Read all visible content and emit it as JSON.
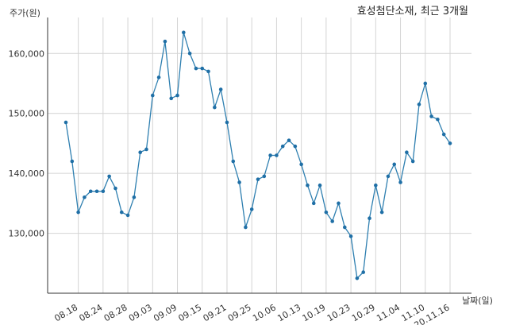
{
  "chart_data": {
    "type": "line",
    "title": "효성첨단소재, 최근 3개월",
    "ylabel": "주가(원)",
    "xlabel": "날짜(일)",
    "ylim": [
      120000,
      166000
    ],
    "yticks": [
      130000,
      140000,
      150000,
      160000
    ],
    "ytick_labels": [
      "130,000",
      "140,000",
      "150,000",
      "160,000"
    ],
    "grid": true,
    "colors": {
      "line": "#2e7fb0",
      "marker": "#1f6fa6"
    },
    "x": [
      "08.14",
      "08.17",
      "08.18",
      "08.19",
      "08.20",
      "08.21",
      "08.24",
      "08.25",
      "08.26",
      "08.27",
      "08.28",
      "08.31",
      "09.01",
      "09.02",
      "09.03",
      "09.04",
      "09.07",
      "09.08",
      "09.09",
      "09.10",
      "09.11",
      "09.14",
      "09.15",
      "09.16",
      "09.17",
      "09.18",
      "09.21",
      "09.22",
      "09.23",
      "09.24",
      "09.25",
      "09.28",
      "09.29",
      "10.05",
      "10.06",
      "10.07",
      "10.08",
      "10.12",
      "10.13",
      "10.14",
      "10.15",
      "10.16",
      "10.19",
      "10.20",
      "10.21",
      "10.22",
      "10.23",
      "10.26",
      "10.27",
      "10.28",
      "10.29",
      "10.30",
      "11.02",
      "11.03",
      "11.04",
      "11.05",
      "11.06",
      "11.09",
      "11.10",
      "11.11",
      "11.12",
      "11.13",
      "11.16"
    ],
    "xtick_labels": [
      "08.18",
      "08.24",
      "08.28",
      "09.03",
      "09.09",
      "09.15",
      "09.21",
      "09.25",
      "10.06",
      "10.13",
      "10.19",
      "10.23",
      "10.29",
      "11.04",
      "11.10",
      "20.11.16"
    ],
    "xtick_index": [
      2,
      6,
      10,
      14,
      18,
      22,
      26,
      30,
      34,
      38,
      42,
      46,
      50,
      54,
      58,
      62
    ],
    "series": [
      {
        "values": [
          148500,
          142000,
          133500,
          136000,
          137000,
          137000,
          137000,
          139500,
          137500,
          133500,
          133000,
          136000,
          143500,
          144000,
          153000,
          156000,
          162000,
          152500,
          153000,
          163500,
          160000,
          157500,
          157500,
          157000,
          151000,
          154000,
          148500,
          142000,
          138500,
          131000,
          134000,
          139000,
          139500,
          143000,
          143000,
          144500,
          145500,
          144500,
          141500,
          138000,
          135000,
          138000,
          133500,
          132000,
          135000,
          131000,
          129500,
          122500,
          123500,
          132500,
          138000,
          133500,
          139500,
          141500,
          138500,
          143500,
          142000,
          151500,
          155000,
          149500,
          149000,
          146500,
          145000
        ]
      }
    ]
  }
}
